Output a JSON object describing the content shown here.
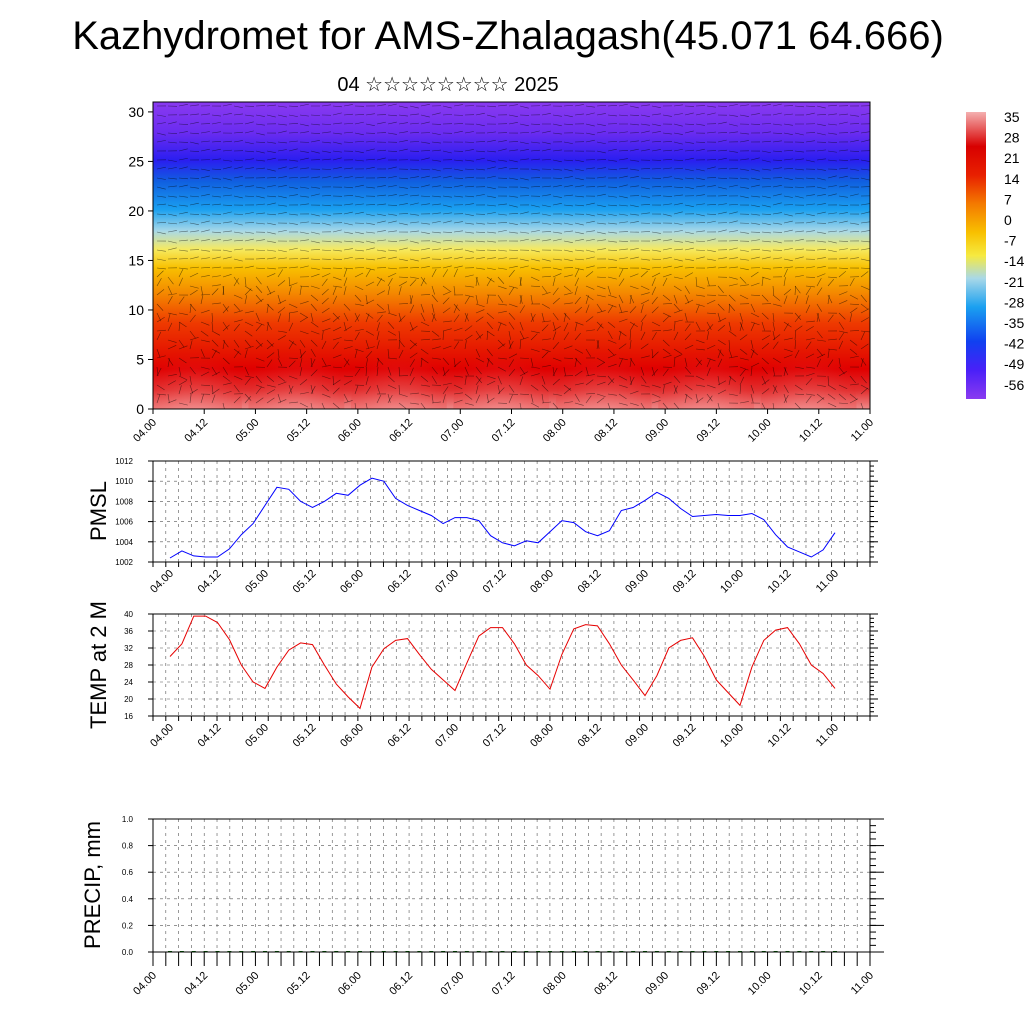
{
  "title": "Kazhydromet for AMS-Zhalagash(45.071 64.666)",
  "subtitle": "04 ☆☆☆☆☆☆☆☆ 2025",
  "chart_data": [
    {
      "type": "heatmap",
      "panel": "cross-section",
      "y_ticks": [
        "0",
        "5",
        "10",
        "15",
        "20",
        "25",
        "30"
      ],
      "ylim": [
        0,
        31
      ],
      "x_ticks": [
        "04.00",
        "04.12",
        "05.00",
        "05.12",
        "06.00",
        "06.12",
        "07.00",
        "07.12",
        "08.00",
        "08.12",
        "09.00",
        "09.12",
        "10.00",
        "10.12",
        "11.00"
      ],
      "colorbar_labels": [
        "35",
        "28",
        "21",
        "14",
        "7",
        "0",
        "-7",
        "-14",
        "-21",
        "-28",
        "-35",
        "-42",
        "-49",
        "-56"
      ],
      "level_temperature_profile": [
        {
          "y": 0,
          "value": 33
        },
        {
          "y": 5,
          "value": 25
        },
        {
          "y": 10,
          "value": 14
        },
        {
          "y": 15,
          "value": -7
        },
        {
          "y": 20,
          "value": -28
        },
        {
          "y": 25,
          "value": -49
        },
        {
          "y": 30,
          "value": -56
        }
      ],
      "colors": {
        "hot": "#f4a6a6",
        "warm": "#e60000",
        "cold": "#1e90ff",
        "coldest": "#7a2fe8"
      }
    },
    {
      "type": "line",
      "panel": "pmsl",
      "ylabel": "PMSL",
      "ylim": [
        1002,
        1012
      ],
      "y_ticks": [
        "1012",
        "1010",
        "1008",
        "1006",
        "1004",
        "1002"
      ],
      "x_ticks": [
        "04.00",
        "04.12",
        "05.00",
        "05.12",
        "06.00",
        "06.12",
        "07.00",
        "07.12",
        "08.00",
        "08.12",
        "09.00",
        "09.12",
        "10.00",
        "10.12",
        "11.00"
      ],
      "color": "#0000ff",
      "series": [
        {
          "values": [
            1002.4,
            1003.1,
            1002.6,
            1002.5,
            1002.5,
            1003.3,
            1004.7,
            1005.8,
            1007.6,
            1009.4,
            1009.2,
            1008.0,
            1007.4,
            1008.0,
            1008.8,
            1008.6,
            1009.6,
            1010.3,
            1010.0,
            1008.3,
            1007.6,
            1007.1,
            1006.6,
            1005.8,
            1006.4,
            1006.4,
            1006.1,
            1004.6,
            1003.9,
            1003.6,
            1004.1,
            1003.9,
            1005.0,
            1006.1,
            1005.9,
            1005.0,
            1004.6,
            1005.1,
            1007.1,
            1007.4,
            1008.1,
            1008.9,
            1008.3,
            1007.3,
            1006.5,
            1006.6,
            1006.7,
            1006.6,
            1006.6,
            1006.8,
            1006.2,
            1004.7,
            1003.5,
            1003.0,
            1002.5,
            1003.2,
            1004.9
          ]
        }
      ]
    },
    {
      "type": "line",
      "panel": "temp",
      "ylabel": "TEMP at 2 M",
      "ylim": [
        16,
        40
      ],
      "y_ticks": [
        "40",
        "36",
        "32",
        "28",
        "24",
        "20",
        "16"
      ],
      "x_ticks": [
        "04.00",
        "04.12",
        "05.00",
        "05.12",
        "06.00",
        "06.12",
        "07.00",
        "07.12",
        "08.00",
        "08.12",
        "09.00",
        "09.12",
        "10.00",
        "10.12",
        "11.00"
      ],
      "color": "#e60000",
      "series": [
        {
          "values": [
            30.0,
            33.0,
            39.5,
            39.5,
            38.0,
            34.0,
            28.0,
            24.0,
            22.5,
            27.5,
            31.5,
            33.2,
            32.8,
            28.0,
            23.5,
            20.5,
            17.8,
            27.5,
            31.8,
            33.8,
            34.2,
            30.5,
            27.0,
            24.5,
            22.0,
            28.5,
            34.8,
            36.8,
            36.8,
            33.0,
            28.0,
            25.5,
            22.3,
            30.5,
            36.5,
            37.5,
            37.2,
            33.0,
            28.0,
            24.5,
            20.8,
            25.5,
            32.0,
            33.8,
            34.4,
            30.0,
            24.5,
            21.5,
            18.5,
            27.5,
            33.8,
            36.2,
            36.8,
            33.0,
            28.0,
            26.0,
            22.5
          ]
        }
      ]
    },
    {
      "type": "bar",
      "panel": "precip",
      "ylabel": "PRECIP, mm",
      "ylim": [
        0,
        1
      ],
      "y_ticks": [
        "1.0",
        "0.8",
        "0.6",
        "0.4",
        "0.2",
        "0.0"
      ],
      "x_ticks": [
        "04.00",
        "04.12",
        "05.00",
        "05.12",
        "06.00",
        "06.12",
        "07.00",
        "07.12",
        "08.00",
        "08.12",
        "09.00",
        "09.12",
        "10.00",
        "10.12",
        "11.00"
      ],
      "color": "#006400",
      "values": [
        0,
        0,
        0,
        0,
        0,
        0,
        0,
        0,
        0,
        0,
        0,
        0,
        0,
        0,
        0,
        0,
        0,
        0,
        0,
        0,
        0,
        0,
        0,
        0,
        0,
        0,
        0,
        0,
        0,
        0,
        0,
        0,
        0,
        0,
        0,
        0,
        0,
        0,
        0,
        0,
        0,
        0,
        0,
        0,
        0,
        0,
        0,
        0,
        0,
        0,
        0,
        0,
        0,
        0,
        0,
        0,
        0
      ]
    }
  ]
}
